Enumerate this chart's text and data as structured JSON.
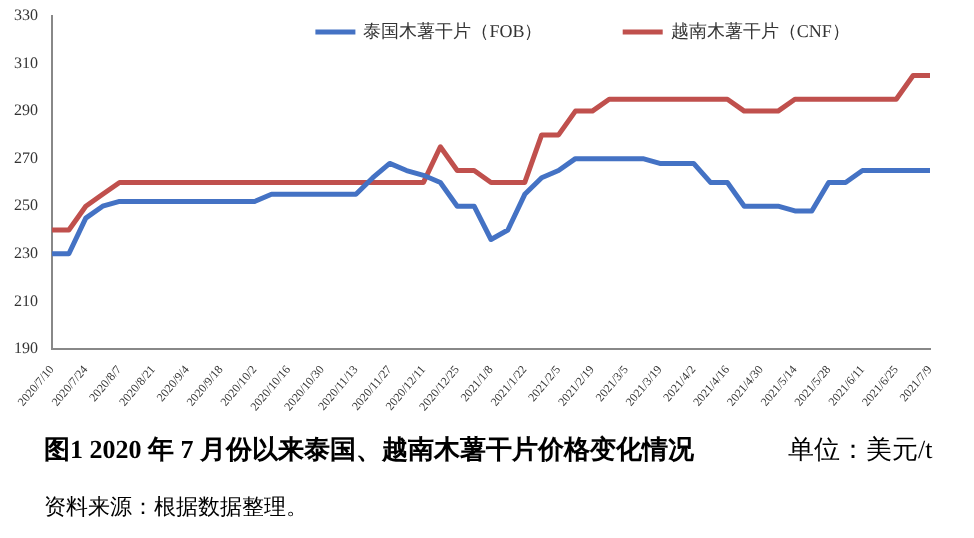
{
  "chart_data": {
    "type": "line",
    "title": "图1   2020 年 7 月份以来泰国、越南木薯干片价格变化情况",
    "annotations": [
      "单位：美元/t",
      "资料来源：根据数据整理。"
    ],
    "categories": [
      "2020/7/10",
      null,
      "2020/7/24",
      null,
      "2020/8/7",
      null,
      "2020/8/21",
      null,
      "2020/9/4",
      null,
      "2020/9/18",
      null,
      "2020/10/2",
      null,
      "2020/10/16",
      null,
      "2020/10/30",
      null,
      "2020/11/13",
      null,
      "2020/11/27",
      null,
      "2020/12/11",
      null,
      "2020/12/25",
      null,
      "2021/1/8",
      null,
      "2021/1/22",
      null,
      "2021/2/5",
      null,
      "2021/2/19",
      null,
      "2021/3/5",
      null,
      "2021/3/19",
      null,
      "2021/4/2",
      null,
      "2021/4/16",
      null,
      "2021/4/30",
      null,
      "2021/5/14",
      null,
      "2021/5/28",
      null,
      "2021/6/11",
      null,
      "2021/6/25",
      null,
      "2021/7/9"
    ],
    "series": [
      {
        "name": "泰国木薯干片（FOB）",
        "color": "#4472c4",
        "values": [
          230,
          230,
          245,
          250,
          252,
          252,
          252,
          252,
          252,
          252,
          252,
          252,
          252,
          255,
          255,
          255,
          255,
          255,
          255,
          262,
          268,
          265,
          263,
          260,
          250,
          250,
          236,
          240,
          255,
          262,
          265,
          270,
          270,
          270,
          270,
          270,
          268,
          268,
          268,
          260,
          260,
          250,
          250,
          250,
          248,
          248,
          260,
          260,
          265,
          265,
          265,
          265,
          265
        ]
      },
      {
        "name": "越南木薯干片（CNF）",
        "color": "#c0504d",
        "values": [
          240,
          240,
          250,
          255,
          260,
          260,
          260,
          260,
          260,
          260,
          260,
          260,
          260,
          260,
          260,
          260,
          260,
          260,
          260,
          260,
          260,
          260,
          260,
          275,
          265,
          265,
          260,
          260,
          260,
          280,
          280,
          290,
          290,
          295,
          295,
          295,
          295,
          295,
          295,
          295,
          295,
          290,
          290,
          290,
          295,
          295,
          295,
          295,
          295,
          295,
          295,
          305,
          305
        ]
      }
    ],
    "ylim": [
      190,
      330
    ],
    "yticks": [
      190,
      210,
      230,
      250,
      270,
      290,
      310,
      330
    ],
    "grid": false,
    "legend": "top",
    "marker": "none",
    "line_style": "solid"
  }
}
